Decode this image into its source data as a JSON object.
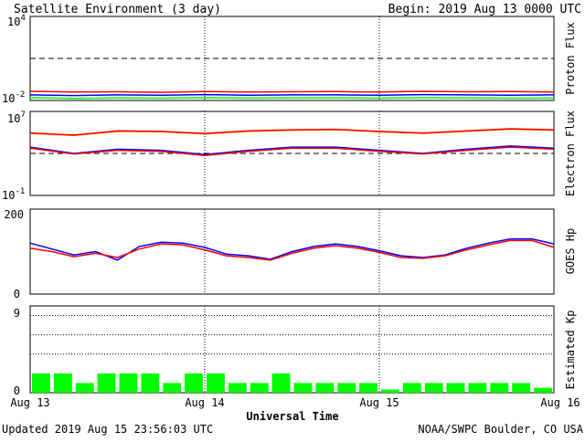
{
  "header": {
    "title": "Satellite Environment (3 day)",
    "begin": "Begin:  2019 Aug 13 0000 UTC"
  },
  "footer": {
    "updated": "Updated 2019 Aug 15 23:56:03 UTC",
    "credit": "NOAA/SWPC Boulder, CO USA"
  },
  "x_axis": {
    "label": "Universal Time",
    "ticks": [
      "Aug 13",
      "Aug 14",
      "Aug 15",
      "Aug 16"
    ]
  },
  "colors": {
    "red": "#ff0000",
    "blue": "#0000ff",
    "green": "#00ff00",
    "orange": "#ff9900",
    "bar": "#00ff00"
  },
  "chart_data": [
    {
      "id": "proton",
      "type": "line",
      "ylabel": "Proton Flux",
      "y_tick_base": "10",
      "y_tick_top_exp": "4",
      "y_tick_bottom_exp": "-2",
      "yscale": "log",
      "ylim_exp": [
        -2,
        4
      ],
      "threshold_exp": 1,
      "x": [
        0,
        6,
        12,
        18,
        24,
        30,
        36,
        42,
        48,
        54,
        60,
        66,
        72
      ],
      "series": [
        {
          "color": "red",
          "values_exp": [
            -1.35,
            -1.4,
            -1.38,
            -1.42,
            -1.36,
            -1.4,
            -1.38,
            -1.37,
            -1.4,
            -1.35,
            -1.38,
            -1.36,
            -1.4
          ]
        },
        {
          "color": "blue",
          "values_exp": [
            -1.6,
            -1.65,
            -1.6,
            -1.62,
            -1.58,
            -1.63,
            -1.6,
            -1.6,
            -1.62,
            -1.58,
            -1.6,
            -1.62,
            -1.6
          ]
        },
        {
          "color": "green",
          "values_exp": [
            -1.8,
            -1.85,
            -1.82,
            -1.84,
            -1.8,
            -1.83,
            -1.82,
            -1.81,
            -1.84,
            -1.8,
            -1.82,
            -1.84,
            -1.83
          ]
        }
      ]
    },
    {
      "id": "electron",
      "type": "line",
      "ylabel": "Electron Flux",
      "y_tick_base": "10",
      "y_tick_top_exp": "7",
      "y_tick_bottom_exp": "-1",
      "yscale": "log",
      "ylim_exp": [
        -1,
        7
      ],
      "threshold_exp": 3,
      "x": [
        0,
        6,
        12,
        18,
        24,
        30,
        36,
        42,
        48,
        54,
        60,
        66,
        72
      ],
      "series": [
        {
          "color": "orange",
          "values_exp": [
            4.9,
            4.7,
            5.1,
            5.05,
            4.85,
            5.1,
            5.2,
            5.25,
            5.05,
            4.9,
            5.1,
            5.3,
            5.2
          ]
        },
        {
          "color": "red",
          "values_exp": [
            4.95,
            4.75,
            5.15,
            5.1,
            4.9,
            5.15,
            5.25,
            5.3,
            5.1,
            4.95,
            5.15,
            5.35,
            5.25
          ]
        },
        {
          "color": "blue",
          "values_exp": [
            3.6,
            3.0,
            3.4,
            3.3,
            2.9,
            3.3,
            3.6,
            3.6,
            3.3,
            3.0,
            3.4,
            3.7,
            3.5
          ]
        },
        {
          "color": "red",
          "values_exp": [
            3.5,
            2.95,
            3.3,
            3.2,
            2.8,
            3.2,
            3.5,
            3.5,
            3.2,
            2.95,
            3.3,
            3.6,
            3.4
          ]
        }
      ]
    },
    {
      "id": "hp",
      "type": "line",
      "ylabel": "GOES Hp",
      "ylim": [
        0,
        200
      ],
      "y_ticks": [
        "200",
        "0"
      ],
      "x": [
        0,
        3,
        6,
        9,
        12,
        15,
        18,
        21,
        24,
        27,
        30,
        33,
        36,
        39,
        42,
        45,
        48,
        51,
        54,
        57,
        60,
        63,
        66,
        69,
        72
      ],
      "series": [
        {
          "color": "blue",
          "values": [
            120,
            106,
            92,
            100,
            80,
            112,
            122,
            120,
            110,
            94,
            90,
            82,
            100,
            112,
            118,
            112,
            102,
            90,
            86,
            92,
            108,
            120,
            130,
            130,
            118
          ]
        },
        {
          "color": "red",
          "values": [
            108,
            100,
            88,
            96,
            86,
            106,
            118,
            116,
            104,
            90,
            86,
            80,
            96,
            108,
            114,
            108,
            98,
            86,
            84,
            90,
            104,
            116,
            126,
            126,
            110
          ]
        }
      ]
    },
    {
      "id": "kp",
      "type": "bar",
      "ylabel": "Estimated Kp",
      "ylim": [
        0,
        9
      ],
      "y_ticks": [
        "9",
        "0"
      ],
      "dotted_levels": [
        4,
        6,
        8
      ],
      "values": [
        2,
        2,
        1,
        2,
        2,
        2,
        1,
        2,
        2,
        1,
        1,
        2,
        1,
        1,
        1,
        1,
        0.33,
        1,
        1,
        1,
        1,
        1,
        1,
        0.5
      ]
    }
  ]
}
